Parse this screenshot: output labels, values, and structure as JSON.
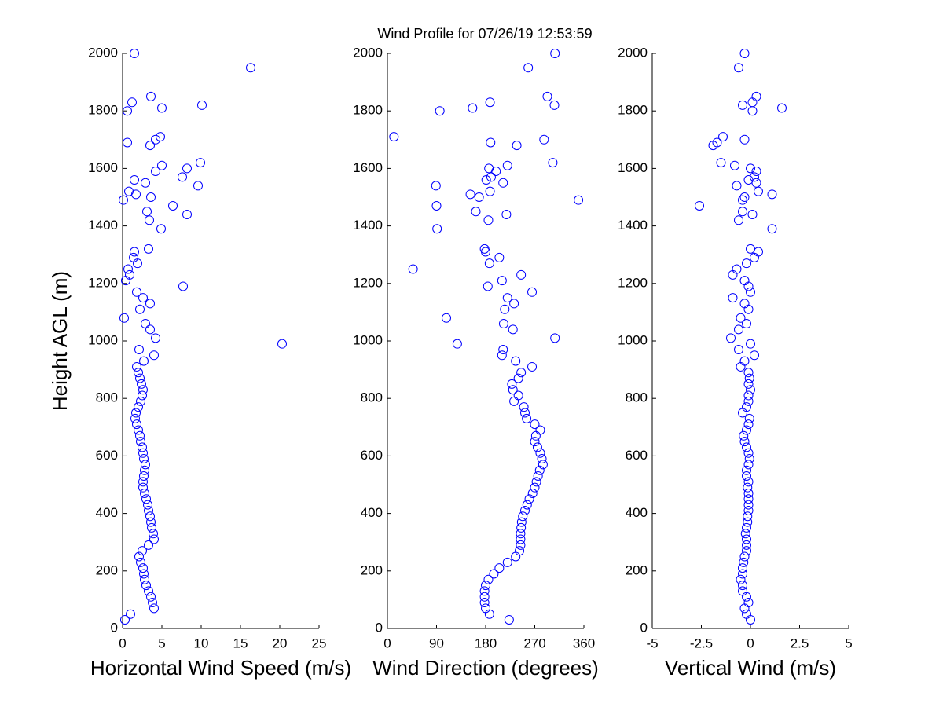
{
  "title": "Wind Profile for  07/26/19 12:53:59",
  "chart_data": [
    {
      "type": "scatter",
      "xlabel": "Horizontal Wind Speed (m/s)",
      "ylabel": "Height AGL (m)",
      "color": "#0000ff",
      "xlim": [
        0,
        25
      ],
      "xticks": [
        0,
        5,
        10,
        15,
        20,
        25
      ],
      "ylim": [
        0,
        2000
      ],
      "yticks": [
        0,
        200,
        400,
        600,
        800,
        1000,
        1200,
        1400,
        1600,
        1800,
        2000
      ],
      "x": [
        0.3,
        1.0,
        4.0,
        3.8,
        3.6,
        3.3,
        3.0,
        2.8,
        2.7,
        2.6,
        2.3,
        2.1,
        2.5,
        3.3,
        4.0,
        3.9,
        3.7,
        3.6,
        3.5,
        3.3,
        3.2,
        3.0,
        2.8,
        2.6,
        2.6,
        2.7,
        2.8,
        2.9,
        2.7,
        2.6,
        2.5,
        2.3,
        2.2,
        2.0,
        1.8,
        1.6,
        1.7,
        2.0,
        2.3,
        2.5,
        2.6,
        2.4,
        2.2,
        2.0,
        1.8,
        2.7,
        4.0,
        2.1,
        20.3,
        4.2,
        3.5,
        2.9,
        0.2,
        2.2,
        3.5,
        2.6,
        1.8,
        7.7,
        0.4,
        0.9,
        0.7,
        1.9,
        1.4,
        1.5,
        3.3,
        4.9,
        3.4,
        8.2,
        3.1,
        6.4,
        0.1,
        3.6,
        1.7,
        0.8,
        9.6,
        2.9,
        1.5,
        7.6,
        4.2,
        8.2,
        5.0,
        9.9,
        3.5,
        0.6,
        4.2,
        4.8,
        0.6,
        5.0,
        10.1,
        1.2,
        3.6,
        16.3,
        1.5
      ],
      "y": [
        30,
        50,
        70,
        90,
        110,
        130,
        150,
        170,
        190,
        210,
        230,
        250,
        270,
        290,
        310,
        330,
        350,
        370,
        390,
        410,
        430,
        450,
        470,
        490,
        510,
        530,
        550,
        570,
        590,
        610,
        630,
        650,
        670,
        690,
        710,
        730,
        750,
        770,
        790,
        810,
        830,
        850,
        870,
        890,
        910,
        930,
        950,
        970,
        990,
        1010,
        1040,
        1060,
        1080,
        1110,
        1130,
        1150,
        1170,
        1190,
        1210,
        1230,
        1250,
        1270,
        1290,
        1310,
        1320,
        1390,
        1420,
        1440,
        1450,
        1470,
        1490,
        1500,
        1510,
        1520,
        1540,
        1550,
        1560,
        1570,
        1590,
        1600,
        1610,
        1620,
        1680,
        1690,
        1700,
        1710,
        1800,
        1810,
        1820,
        1830,
        1850,
        1950,
        2000
      ]
    },
    {
      "type": "scatter",
      "xlabel": "Wind Direction (degrees)",
      "color": "#0000ff",
      "xlim": [
        0,
        360
      ],
      "xticks": [
        0,
        90,
        180,
        270,
        360
      ],
      "ylim": [
        0,
        2000
      ],
      "yticks": [
        0,
        200,
        400,
        600,
        800,
        1000,
        1200,
        1400,
        1600,
        1800,
        2000
      ],
      "x": [
        223,
        187,
        180,
        178,
        178,
        178,
        180,
        185,
        195,
        205,
        220,
        235,
        242,
        244,
        244,
        244,
        245,
        246,
        248,
        252,
        256,
        260,
        266,
        270,
        273,
        276,
        279,
        285,
        283,
        280,
        275,
        270,
        272,
        280,
        270,
        255,
        252,
        250,
        232,
        240,
        230,
        228,
        240,
        245,
        265,
        235,
        210,
        212,
        128,
        307,
        230,
        213,
        108,
        215,
        232,
        220,
        265,
        184,
        210,
        245,
        47,
        187,
        205,
        180,
        178,
        91,
        185,
        218,
        162,
        90,
        350,
        168,
        152,
        188,
        89,
        212,
        181,
        190,
        199,
        186,
        220,
        303,
        237,
        189,
        287,
        12,
        96,
        156,
        306,
        188,
        293,
        258,
        307
      ],
      "y": [
        30,
        50,
        70,
        90,
        110,
        130,
        150,
        170,
        190,
        210,
        230,
        250,
        270,
        290,
        310,
        330,
        350,
        370,
        390,
        410,
        430,
        450,
        470,
        490,
        510,
        530,
        550,
        570,
        590,
        610,
        630,
        650,
        670,
        690,
        710,
        730,
        750,
        770,
        790,
        810,
        830,
        850,
        870,
        890,
        910,
        930,
        950,
        970,
        990,
        1010,
        1040,
        1060,
        1080,
        1110,
        1130,
        1150,
        1170,
        1190,
        1210,
        1230,
        1250,
        1270,
        1290,
        1310,
        1320,
        1390,
        1420,
        1440,
        1450,
        1470,
        1490,
        1500,
        1510,
        1520,
        1540,
        1550,
        1560,
        1570,
        1590,
        1600,
        1610,
        1620,
        1680,
        1690,
        1700,
        1710,
        1800,
        1810,
        1820,
        1830,
        1850,
        1950,
        2000
      ]
    },
    {
      "type": "scatter",
      "xlabel": "Vertical Wind (m/s)",
      "color": "#0000ff",
      "xlim": [
        -5,
        5
      ],
      "xticks": [
        -5,
        -2.5,
        0,
        2.5,
        5
      ],
      "ylim": [
        0,
        2000
      ],
      "yticks": [
        0,
        200,
        400,
        600,
        800,
        1000,
        1200,
        1400,
        1600,
        1800,
        2000
      ],
      "x": [
        0,
        -0.2,
        -0.3,
        -0.1,
        -0.2,
        -0.4,
        -0.4,
        -0.5,
        -0.4,
        -0.4,
        -0.35,
        -0.3,
        -0.2,
        -0.2,
        -0.2,
        -0.25,
        -0.2,
        -0.15,
        -0.15,
        -0.1,
        -0.1,
        -0.1,
        -0.1,
        -0.15,
        -0.1,
        -0.2,
        -0.2,
        -0.1,
        -0.05,
        -0.1,
        -0.2,
        -0.3,
        -0.35,
        -0.2,
        -0.1,
        -0.05,
        -0.4,
        -0.2,
        -0.1,
        -0.1,
        0,
        -0.1,
        -0.05,
        -0.1,
        -0.5,
        -0.3,
        0.2,
        -0.6,
        0,
        -1.0,
        -0.6,
        -0.2,
        -0.5,
        -0.1,
        -0.3,
        -0.9,
        0,
        -0.1,
        -0.3,
        -0.9,
        -0.7,
        -0.2,
        0.2,
        0.4,
        0,
        1.1,
        -0.6,
        0.1,
        -0.4,
        -2.6,
        -0.4,
        -0.3,
        1.1,
        0.4,
        -0.7,
        0.3,
        -0.1,
        0.2,
        0.3,
        0,
        -0.8,
        -1.5,
        -1.9,
        -1.7,
        -0.3,
        -1.4,
        0.1,
        1.6,
        -0.4,
        0.1,
        0.3,
        -0.6,
        -0.3
      ],
      "y": [
        30,
        50,
        70,
        90,
        110,
        130,
        150,
        170,
        190,
        210,
        230,
        250,
        270,
        290,
        310,
        330,
        350,
        370,
        390,
        410,
        430,
        450,
        470,
        490,
        510,
        530,
        550,
        570,
        590,
        610,
        630,
        650,
        670,
        690,
        710,
        730,
        750,
        770,
        790,
        810,
        830,
        850,
        870,
        890,
        910,
        930,
        950,
        970,
        990,
        1010,
        1040,
        1060,
        1080,
        1110,
        1130,
        1150,
        1170,
        1190,
        1210,
        1230,
        1250,
        1270,
        1290,
        1310,
        1320,
        1390,
        1420,
        1440,
        1450,
        1470,
        1490,
        1500,
        1510,
        1520,
        1540,
        1550,
        1560,
        1570,
        1590,
        1600,
        1610,
        1620,
        1680,
        1690,
        1700,
        1710,
        1800,
        1810,
        1820,
        1830,
        1850,
        1950,
        2000
      ]
    }
  ]
}
